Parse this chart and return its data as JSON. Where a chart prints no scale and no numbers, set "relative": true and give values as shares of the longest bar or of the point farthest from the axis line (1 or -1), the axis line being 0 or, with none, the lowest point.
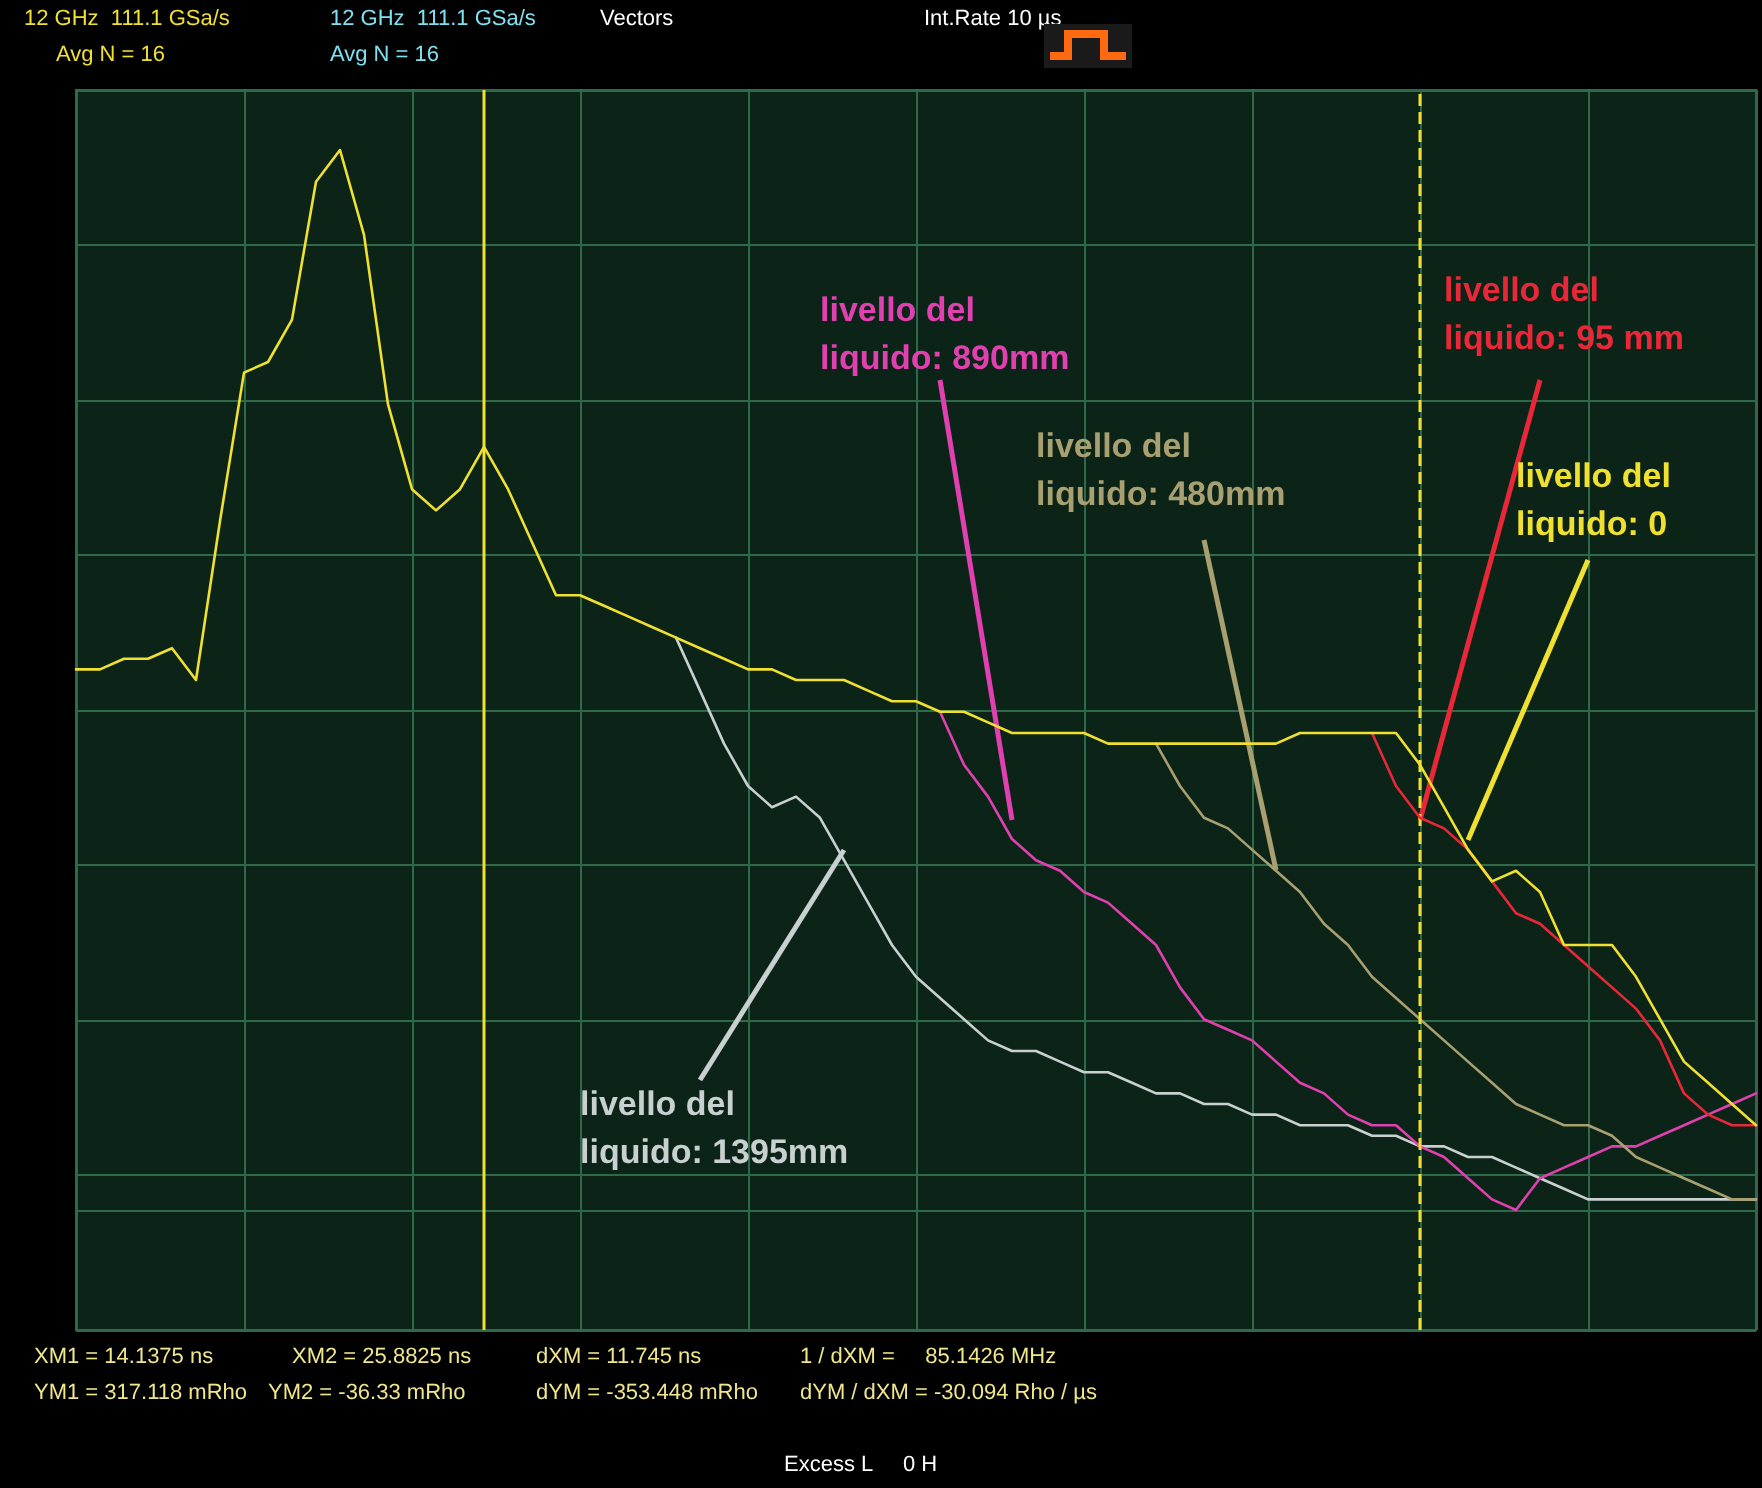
{
  "chart_data": {
    "type": "line",
    "relative": true,
    "grid": true,
    "categories": [
      null,
      null,
      null,
      null,
      null,
      null,
      null,
      null,
      null,
      null,
      null,
      null,
      null,
      null,
      null,
      null,
      null,
      null,
      null,
      null,
      null,
      null,
      null,
      null,
      null,
      null,
      null,
      null,
      null,
      null,
      null,
      null,
      null,
      null,
      null,
      null,
      null,
      null,
      null,
      null,
      null,
      null,
      null,
      null,
      null,
      null,
      null,
      null,
      null,
      null,
      null,
      null,
      null,
      null,
      null,
      null,
      null,
      null,
      null,
      null,
      null,
      null,
      null,
      null,
      null,
      null,
      null,
      null,
      null,
      null,
      null
    ],
    "series": [
      {
        "name": "livello del liquido: 1395mm",
        "color": "#c8d0d0",
        "values": [
          null,
          null,
          null,
          null,
          null,
          null,
          null,
          null,
          null,
          null,
          null,
          null,
          null,
          null,
          null,
          null,
          null,
          null,
          null,
          null,
          null,
          null,
          null,
          null,
          null,
          0.54,
          0.49,
          0.44,
          0.4,
          0.38,
          0.39,
          0.37,
          0.33,
          0.29,
          0.25,
          0.22,
          0.2,
          0.18,
          0.16,
          0.15,
          0.15,
          0.14,
          0.13,
          0.13,
          0.12,
          0.11,
          0.11,
          0.1,
          0.1,
          0.09,
          0.09,
          0.08,
          0.08,
          0.08,
          0.07,
          0.07,
          0.06,
          0.06,
          0.05,
          0.05,
          0.04,
          0.03,
          0.02,
          0.01,
          0.01,
          0.01,
          0.01,
          0.01,
          0.01,
          0.01,
          0.01
        ]
      },
      {
        "name": "livello del liquido: 890mm",
        "color": "#e040b0",
        "values": [
          null,
          null,
          null,
          null,
          null,
          null,
          null,
          null,
          null,
          null,
          null,
          null,
          null,
          null,
          null,
          null,
          null,
          null,
          null,
          null,
          null,
          null,
          null,
          null,
          null,
          null,
          null,
          null,
          null,
          null,
          null,
          null,
          null,
          null,
          null,
          null,
          0.47,
          0.42,
          0.39,
          0.35,
          0.33,
          0.32,
          0.3,
          0.29,
          0.27,
          0.25,
          0.21,
          0.18,
          0.17,
          0.16,
          0.14,
          0.12,
          0.11,
          0.09,
          0.08,
          0.08,
          0.06,
          0.05,
          0.03,
          0.01,
          0.0,
          0.03,
          0.04,
          0.05,
          0.06,
          0.06,
          0.07,
          0.08,
          0.09,
          0.1,
          0.11
        ]
      },
      {
        "name": "livello del liquido: 480mm",
        "color": "#a8a070",
        "values": [
          null,
          null,
          null,
          null,
          null,
          null,
          null,
          null,
          null,
          null,
          null,
          null,
          null,
          null,
          null,
          null,
          null,
          null,
          null,
          null,
          null,
          null,
          null,
          null,
          null,
          null,
          null,
          null,
          null,
          null,
          null,
          null,
          null,
          null,
          null,
          null,
          null,
          null,
          null,
          null,
          null,
          null,
          null,
          null,
          null,
          0.44,
          0.4,
          0.37,
          0.36,
          0.34,
          0.32,
          0.3,
          0.27,
          0.25,
          0.22,
          0.2,
          0.18,
          0.16,
          0.14,
          0.12,
          0.1,
          0.09,
          0.08,
          0.08,
          0.07,
          0.05,
          0.04,
          0.03,
          0.02,
          0.01,
          0.01
        ]
      },
      {
        "name": "livello del liquido: 95 mm",
        "color": "#e82838",
        "values": [
          null,
          null,
          null,
          null,
          null,
          null,
          null,
          null,
          null,
          null,
          null,
          null,
          null,
          null,
          null,
          null,
          null,
          null,
          null,
          null,
          null,
          null,
          null,
          null,
          null,
          null,
          null,
          null,
          null,
          null,
          null,
          null,
          null,
          null,
          null,
          null,
          null,
          null,
          null,
          null,
          null,
          null,
          null,
          null,
          null,
          null,
          null,
          null,
          null,
          null,
          null,
          null,
          null,
          null,
          0.45,
          0.4,
          0.37,
          0.36,
          0.34,
          0.31,
          0.28,
          0.27,
          0.25,
          0.23,
          0.21,
          0.19,
          0.16,
          0.11,
          0.09,
          0.08,
          0.08
        ]
      },
      {
        "name": "livello del liquido: 0",
        "color": "#f0e030",
        "values": [
          0.51,
          0.51,
          0.52,
          0.52,
          0.53,
          0.5,
          0.65,
          0.79,
          0.8,
          0.84,
          0.97,
          1.0,
          0.92,
          0.76,
          0.68,
          0.66,
          0.68,
          0.72,
          0.68,
          0.63,
          0.58,
          0.58,
          0.57,
          0.56,
          0.55,
          0.54,
          0.53,
          0.52,
          0.51,
          0.51,
          0.5,
          0.5,
          0.5,
          0.49,
          0.48,
          0.48,
          0.47,
          0.47,
          0.46,
          0.45,
          0.45,
          0.45,
          0.45,
          0.44,
          0.44,
          0.44,
          0.44,
          0.44,
          0.44,
          0.44,
          0.44,
          0.45,
          0.45,
          0.45,
          0.45,
          0.45,
          0.42,
          0.38,
          0.34,
          0.31,
          0.32,
          0.3,
          0.25,
          0.25,
          0.25,
          0.22,
          0.18,
          0.14,
          0.12,
          0.1,
          0.08
        ]
      }
    ],
    "annotations": [
      "12 GHz  111.1 GSa/s",
      "Avg N = 16",
      "12 GHz  111.1 GSa/s",
      "Avg N = 16",
      "Vectors",
      "Int.Rate 10 µs",
      "XM1 = 14.1375 ns",
      "XM2 = 25.8825 ns",
      "dXM = 11.745 ns",
      "1 / dXM =     85.1426 MHz",
      "YM1 = 317.118 mRho",
      "YM2 = -36.33 mRho",
      "dYM = -353.448 mRho",
      "dYM / dXM = -30.094 Rho / µs",
      "Excess L     0 H"
    ]
  }
}
